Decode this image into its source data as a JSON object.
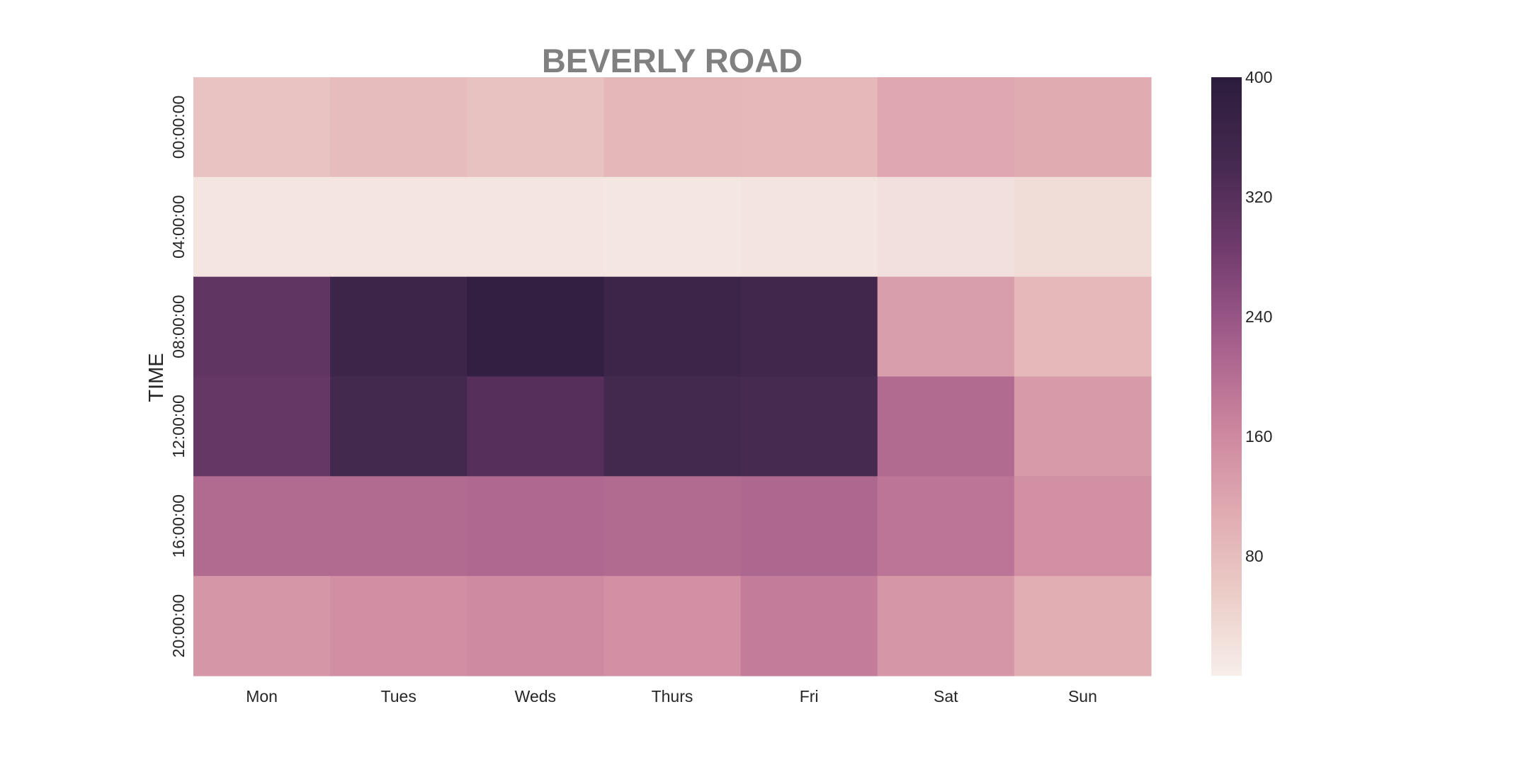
{
  "chart_data": {
    "type": "heatmap",
    "title": "BEVERLY ROAD",
    "xlabel": "",
    "ylabel": "TIME",
    "x_categories": [
      "Mon",
      "Tues",
      "Weds",
      "Thurs",
      "Fri",
      "Sat",
      "Sun"
    ],
    "y_categories": [
      "00:00:00",
      "04:00:00",
      "08:00:00",
      "12:00:00",
      "16:00:00",
      "20:00:00"
    ],
    "values": [
      [
        70,
        82,
        72,
        90,
        88,
        115,
        108
      ],
      [
        15,
        15,
        14,
        12,
        17,
        23,
        28
      ],
      [
        305,
        360,
        385,
        360,
        350,
        130,
        88
      ],
      [
        300,
        345,
        320,
        345,
        340,
        205,
        135
      ],
      [
        205,
        205,
        208,
        205,
        210,
        190,
        150
      ],
      [
        140,
        152,
        160,
        150,
        180,
        140,
        105
      ]
    ],
    "colorbar": {
      "vmin": 0,
      "vmax": 400,
      "ticks": [
        80,
        160,
        240,
        320,
        400
      ],
      "colors": [
        "#f7eeea",
        "#ebcbc6",
        "#dfa8b0",
        "#c9829c",
        "#a05b8a",
        "#6f3b6c",
        "#45294f",
        "#2b1c3d"
      ]
    }
  }
}
